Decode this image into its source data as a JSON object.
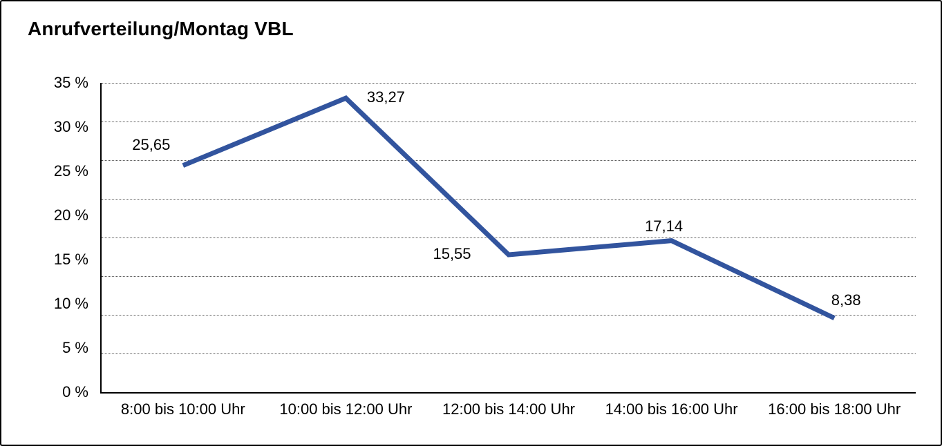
{
  "title": "Anrufverteilung/Montag VBL",
  "colors": {
    "line": "#32549E",
    "text": "#000000",
    "gridline": "#555555",
    "axis": "#000000",
    "background": "#ffffff",
    "border": "#000000"
  },
  "chart_data": {
    "type": "line",
    "title": "Anrufverteilung/Montag VBL",
    "categories": [
      "8:00 bis 10:00 Uhr",
      "10:00 bis 12:00 Uhr",
      "12:00 bis 14:00 Uhr",
      "14:00 bis 16:00 Uhr",
      "16:00 bis 18:00 Uhr"
    ],
    "values": [
      25.65,
      33.27,
      15.55,
      17.14,
      8.38
    ],
    "value_labels": [
      "25,65",
      "33,27",
      "15,55",
      "17,14",
      "8,38"
    ],
    "series_name": "Anrufverteilung Montag VBL",
    "xlabel": "",
    "ylabel": "",
    "ylim": [
      0,
      35
    ],
    "y_tick_step": 5,
    "y_ticks": [
      {
        "value": 35,
        "label": "35 %"
      },
      {
        "value": 30,
        "label": "30 %"
      },
      {
        "value": 25,
        "label": "25 %"
      },
      {
        "value": 20,
        "label": "20 %"
      },
      {
        "value": 15,
        "label": "15 %"
      },
      {
        "value": 10,
        "label": "10 %"
      },
      {
        "value": 5,
        "label": "5 %"
      },
      {
        "value": 0,
        "label": "0 %"
      }
    ],
    "grid": "horizontal-dotted",
    "legend": "none",
    "line_color": "#32549E",
    "line_width": 7
  }
}
